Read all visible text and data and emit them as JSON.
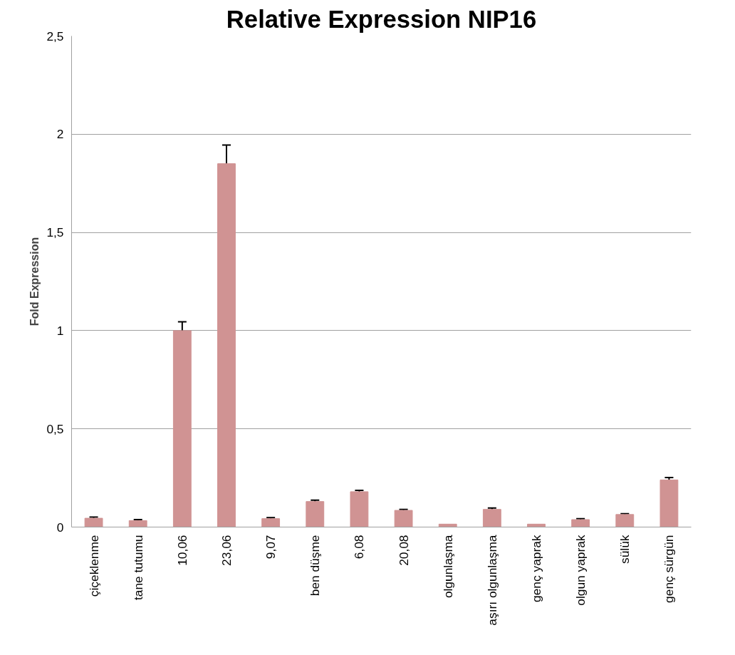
{
  "chart_data": {
    "type": "bar",
    "title": "Relative Expression NIP16",
    "ylabel": "Fold Expression",
    "categories": [
      "çiçeklenme",
      "tane tutumu",
      "10,06",
      "23,06",
      "9,07",
      "ben düşme",
      "6,08",
      "20,08",
      "olgunlaşma",
      "aşırı olgunlaşma",
      "genç yaprak",
      "olgun yaprak",
      "sülük",
      "genç sürgün"
    ],
    "values": [
      0.045,
      0.033,
      1.0,
      1.85,
      0.043,
      0.13,
      0.18,
      0.085,
      0.015,
      0.09,
      0.015,
      0.038,
      0.064,
      0.24
    ],
    "errors": [
      0.006,
      0.005,
      0.045,
      0.095,
      0.005,
      0.007,
      0.007,
      0.005,
      null,
      0.007,
      null,
      0.005,
      0.004,
      0.012
    ],
    "color": "#d09393",
    "ylim": [
      0,
      2.5
    ],
    "yticks": [
      {
        "value": 0,
        "label": "0"
      },
      {
        "value": 0.5,
        "label": "0,5"
      },
      {
        "value": 1,
        "label": "1"
      },
      {
        "value": 1.5,
        "label": "1,5"
      },
      {
        "value": 2,
        "label": "2"
      },
      {
        "value": 2.5,
        "label": "2,5"
      }
    ],
    "grid": "y"
  }
}
